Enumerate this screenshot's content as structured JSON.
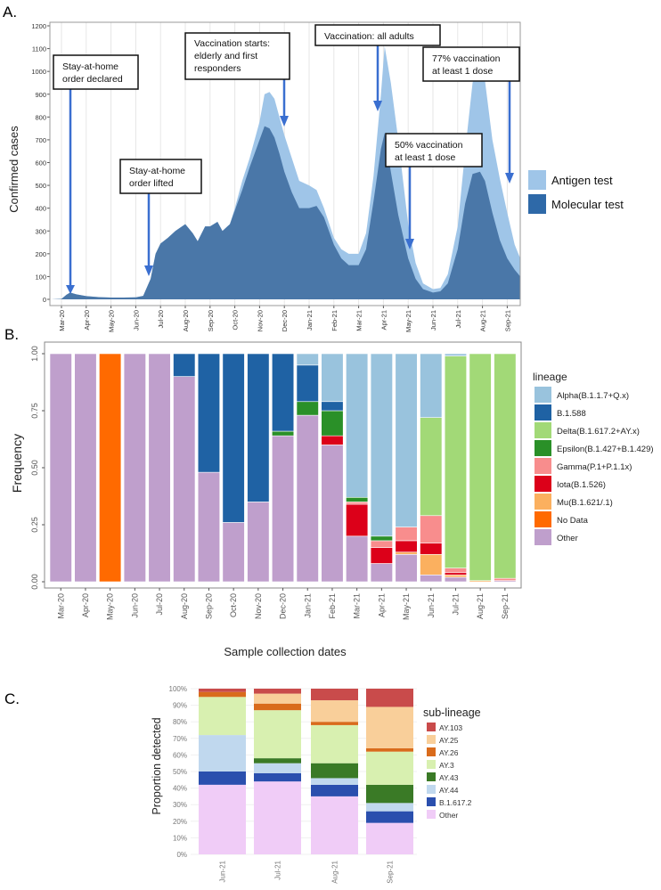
{
  "panel_labels": {
    "a": "A.",
    "b": "B.",
    "c": "C."
  },
  "annotations": [
    {
      "lines": [
        "Stay-at-home",
        "order declared"
      ]
    },
    {
      "lines": [
        "Stay-at-home",
        "order lifted"
      ]
    },
    {
      "lines": [
        "Vaccination starts:",
        "elderly and first",
        "responders"
      ]
    },
    {
      "lines": [
        "Vaccination: all adults"
      ]
    },
    {
      "lines": [
        "77% vaccination",
        "at least 1 dose"
      ]
    },
    {
      "lines": [
        "50% vaccination",
        "at least 1 dose"
      ]
    }
  ],
  "chart_data": [
    {
      "type": "area",
      "title": "",
      "ylabel": "Confirmed cases",
      "xlabel": "",
      "ylim": [
        0,
        1200
      ],
      "yticks": [
        0,
        100,
        200,
        300,
        400,
        500,
        600,
        700,
        800,
        900,
        1000,
        1100,
        1200
      ],
      "xticks": [
        "Mar-20",
        "Apr-20",
        "May-20",
        "Jun-20",
        "Jul-20",
        "Aug-20",
        "Sep-20",
        "Oct-20",
        "Nov-20",
        "Dec-20",
        "Jan-21",
        "Feb-21",
        "Mar-21",
        "Apr-21",
        "May-21",
        "Jun-21",
        "Jul-21",
        "Aug-21",
        "Sep-21"
      ],
      "x_months_from_mar20": [
        -0.4,
        0,
        0.2,
        0.35,
        0.6,
        1,
        1.5,
        2,
        2.5,
        3,
        3.3,
        3.6,
        3.8,
        4,
        4.3,
        4.6,
        5,
        5.3,
        5.5,
        5.8,
        6,
        6.3,
        6.5,
        6.8,
        7,
        7.3,
        7.6,
        8,
        8.2,
        8.4,
        8.6,
        8.8,
        9,
        9.3,
        9.6,
        10,
        10.3,
        10.6,
        11,
        11.3,
        11.6,
        12,
        12.3,
        12.6,
        12.9,
        13.05,
        13.3,
        13.6,
        14,
        14.3,
        14.6,
        15,
        15.3,
        15.6,
        16,
        16.3,
        16.6,
        16.9,
        17.1,
        17.4,
        17.7,
        18,
        18.3,
        18.6
      ],
      "series": [
        {
          "name": "Antigen test",
          "color": "#9fc5e8",
          "stacked_total": true,
          "values": [
            0,
            2,
            20,
            30,
            22,
            14,
            10,
            8,
            8,
            9,
            15,
            90,
            200,
            245,
            270,
            300,
            330,
            290,
            255,
            320,
            320,
            340,
            300,
            330,
            400,
            520,
            620,
            780,
            900,
            910,
            880,
            800,
            720,
            620,
            520,
            500,
            480,
            400,
            270,
            220,
            200,
            200,
            290,
            540,
            900,
            1110,
            950,
            700,
            330,
            160,
            70,
            45,
            50,
            110,
            320,
            650,
            950,
            1040,
            960,
            700,
            530,
            380,
            240,
            180
          ]
        },
        {
          "name": "Molecular test",
          "color": "#4a77a8",
          "values": [
            0,
            2,
            20,
            30,
            22,
            14,
            10,
            8,
            8,
            9,
            15,
            90,
            200,
            245,
            270,
            300,
            330,
            290,
            255,
            320,
            320,
            340,
            300,
            330,
            390,
            480,
            580,
            700,
            760,
            750,
            710,
            640,
            560,
            470,
            400,
            400,
            410,
            360,
            240,
            180,
            150,
            150,
            220,
            430,
            660,
            730,
            560,
            370,
            180,
            90,
            45,
            30,
            35,
            70,
            220,
            420,
            550,
            560,
            520,
            380,
            260,
            180,
            130,
            100
          ]
        }
      ],
      "legend": [
        "Antigen test",
        "Molecular test"
      ],
      "legend_position": "right"
    },
    {
      "type": "bar",
      "stacked": true,
      "xlabel": "Sample collection dates",
      "ylabel": "Frequency",
      "ylim": [
        0,
        1
      ],
      "yticks": [
        "0.00",
        "0.25",
        "0.50",
        "0.75",
        "1.00"
      ],
      "categories": [
        "Mar-20",
        "Apr-20",
        "May-20",
        "Jun-20",
        "Jul-20",
        "Aug-20",
        "Sep-20",
        "Oct-20",
        "Nov-20",
        "Dec-20",
        "Jan-21",
        "Feb-21",
        "Mar-21",
        "Apr-21",
        "May-21",
        "Jun-21",
        "Jul-21",
        "Aug-21",
        "Sep-21"
      ],
      "legend_title": "lineage",
      "legend_position": "right",
      "legend_order": [
        "Alpha(B.1.1.7+Q.x)",
        "B.1.588",
        "Delta(B.1.617.2+AY.x)",
        "Epsilon(B.1.427+B.1.429)",
        "Gamma(P.1+P.1.1x)",
        "Iota(B.1.526)",
        "Mu(B.1.621/.1)",
        "No Data",
        "Other"
      ],
      "series": [
        {
          "name": "Other",
          "color": "#bf9fcc",
          "values": [
            1,
            1,
            0,
            1,
            1,
            0.9,
            0.48,
            0.26,
            0.35,
            0.64,
            0.73,
            0.6,
            0.2,
            0.08,
            0.12,
            0.03,
            0.02,
            0,
            0.005
          ]
        },
        {
          "name": "No Data",
          "color": "#ff6a00",
          "values": [
            0,
            0,
            1,
            0,
            0,
            0,
            0,
            0,
            0,
            0,
            0,
            0,
            0,
            0,
            0,
            0,
            0,
            0,
            0
          ]
        },
        {
          "name": "Mu(B.1.621/.1)",
          "color": "#fbb05f",
          "values": [
            0,
            0,
            0,
            0,
            0,
            0,
            0,
            0,
            0,
            0,
            0,
            0,
            0,
            0,
            0.01,
            0.09,
            0.01,
            0.005,
            0
          ]
        },
        {
          "name": "Iota(B.1.526)",
          "color": "#dc0019",
          "values": [
            0,
            0,
            0,
            0,
            0,
            0,
            0,
            0,
            0,
            0,
            0,
            0.04,
            0.14,
            0.07,
            0.05,
            0.05,
            0.01,
            0,
            0
          ]
        },
        {
          "name": "Gamma(P.1+P.1.1x)",
          "color": "#f88d8d",
          "values": [
            0,
            0,
            0,
            0,
            0,
            0,
            0,
            0,
            0,
            0,
            0,
            0,
            0.01,
            0.03,
            0.06,
            0.12,
            0.02,
            0,
            0.01
          ]
        },
        {
          "name": "Epsilon(B.1.427+B.1.429)",
          "color": "#2a9028",
          "values": [
            0,
            0,
            0,
            0,
            0,
            0,
            0,
            0,
            0,
            0.02,
            0.06,
            0.11,
            0.02,
            0.02,
            0,
            0,
            0,
            0,
            0
          ]
        },
        {
          "name": "Delta(B.1.617.2+AY.x)",
          "color": "#a2d977",
          "values": [
            0,
            0,
            0,
            0,
            0,
            0,
            0,
            0,
            0,
            0,
            0,
            0,
            0,
            0,
            0,
            0.43,
            0.93,
            0.995,
            0.985
          ]
        },
        {
          "name": "B.1.588",
          "color": "#1f62a4",
          "values": [
            0,
            0,
            0,
            0,
            0,
            0.1,
            0.52,
            0.74,
            0.65,
            0.34,
            0.16,
            0.04,
            0,
            0,
            0,
            0,
            0,
            0,
            0
          ]
        },
        {
          "name": "Alpha(B.1.1.7+Q.x)",
          "color": "#99c3dd",
          "values": [
            0,
            0,
            0,
            0,
            0,
            0,
            0,
            0,
            0,
            0,
            0.05,
            0.21,
            0.63,
            0.8,
            0.76,
            0.28,
            0.01,
            0,
            0
          ]
        }
      ]
    },
    {
      "type": "bar",
      "stacked": true,
      "xlabel": "",
      "ylabel": "Proportion detected",
      "ylim": [
        0,
        100
      ],
      "yticks": [
        "0%",
        "10%",
        "20%",
        "30%",
        "40%",
        "50%",
        "60%",
        "70%",
        "80%",
        "90%",
        "100%"
      ],
      "categories": [
        "Jun-21",
        "Jul-21",
        "Aug-21",
        "Sep-21"
      ],
      "legend_title": "sub-lineage",
      "legend_position": "right",
      "legend_order": [
        "AY.103",
        "AY.25",
        "AY.26",
        "AY.3",
        "AY.43",
        "AY.44",
        "B.1.617.2",
        "Other"
      ],
      "series": [
        {
          "name": "Other",
          "color": "#f0ccf7",
          "values": [
            42,
            44,
            35,
            19
          ]
        },
        {
          "name": "B.1.617.2",
          "color": "#2a4fae",
          "values": [
            8,
            5,
            7,
            7
          ]
        },
        {
          "name": "AY.44",
          "color": "#c0d8ee",
          "values": [
            22,
            6,
            4,
            5
          ]
        },
        {
          "name": "AY.43",
          "color": "#3a7a26",
          "values": [
            0,
            3,
            9,
            11
          ]
        },
        {
          "name": "AY.3",
          "color": "#d8f0b0",
          "values": [
            23,
            29,
            23,
            20
          ]
        },
        {
          "name": "AY.26",
          "color": "#d96b1c",
          "values": [
            3,
            4,
            2,
            2
          ]
        },
        {
          "name": "AY.25",
          "color": "#f9cf9a",
          "values": [
            0,
            6,
            13,
            25
          ]
        },
        {
          "name": "AY.103",
          "color": "#c94b4b",
          "values": [
            2,
            3,
            7,
            11
          ]
        }
      ]
    }
  ]
}
